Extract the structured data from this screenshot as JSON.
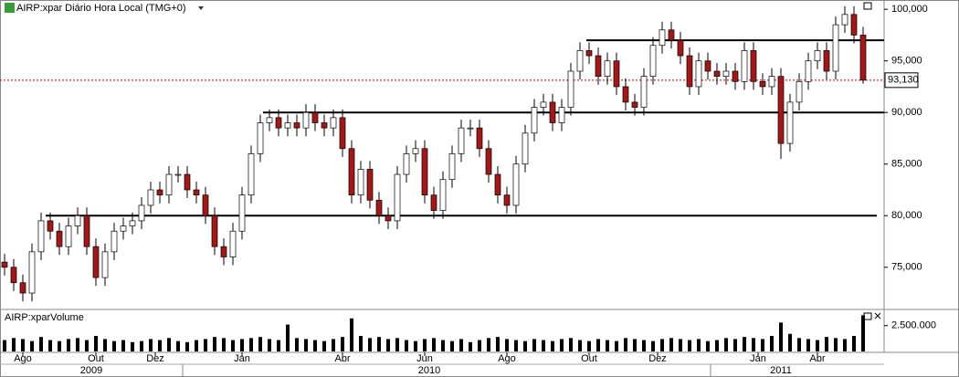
{
  "chart_data": {
    "type": "candlestick",
    "title": "AIRP:xpar Diário Hora Local (TMG+0)",
    "volume_title": "AIRP:xparVolume",
    "open": [
      75500,
      75000,
      73500,
      72500,
      76500,
      79500,
      78500,
      77000,
      79000,
      80000,
      77000,
      74000,
      76500,
      78500,
      79000,
      79500,
      81000,
      82500,
      82000,
      84000,
      84000,
      82500,
      82000,
      80000,
      77000,
      76000,
      78500,
      82000,
      86000,
      89000,
      89500,
      88500,
      89000,
      88500,
      90000,
      89000,
      88500,
      89500,
      86500,
      82000,
      84500,
      81500,
      80000,
      79500,
      84000,
      86000,
      86500,
      82000,
      80500,
      83500,
      86000,
      88500,
      88500,
      86500,
      84000,
      82000,
      81000,
      85000,
      88000,
      90500,
      91000,
      89000,
      90500,
      94000,
      96000,
      95500,
      93500,
      95000,
      92500,
      91000,
      90500,
      93500,
      96500,
      98000,
      97000,
      95500,
      92500,
      95000,
      94000,
      93500,
      94000,
      93000,
      96000,
      93000,
      92500,
      93500,
      87000,
      91000,
      93000,
      95000,
      96000,
      94000,
      98500,
      99500,
      97500
    ],
    "high": [
      76300,
      75800,
      74300,
      77300,
      80300,
      80300,
      79300,
      79800,
      80800,
      80800,
      77800,
      77300,
      79300,
      79800,
      80300,
      81800,
      83300,
      83300,
      84800,
      84800,
      84800,
      83300,
      82800,
      80800,
      77800,
      79300,
      82800,
      86800,
      89800,
      90300,
      90300,
      89800,
      89800,
      90800,
      90800,
      89800,
      90300,
      90300,
      87300,
      85300,
      85300,
      82300,
      80800,
      84800,
      86800,
      87300,
      87300,
      82800,
      84300,
      86800,
      89300,
      89300,
      89300,
      87300,
      84800,
      82800,
      85800,
      88800,
      91300,
      91800,
      91800,
      91300,
      94800,
      96800,
      96800,
      96300,
      95800,
      95800,
      93300,
      91800,
      94300,
      97300,
      98800,
      98800,
      97800,
      96300,
      95800,
      95800,
      94800,
      94800,
      94800,
      96800,
      96800,
      93800,
      94300,
      94300,
      91800,
      93800,
      95800,
      96800,
      96800,
      99300,
      100300,
      100300,
      98300
    ],
    "low": [
      74200,
      72700,
      71700,
      71700,
      75700,
      77700,
      76200,
      76200,
      78200,
      76200,
      73200,
      73200,
      75700,
      77700,
      78200,
      78700,
      80200,
      81200,
      81200,
      83200,
      81700,
      81200,
      79200,
      76200,
      75200,
      75200,
      77700,
      81200,
      85200,
      88200,
      87700,
      87700,
      87700,
      87700,
      88200,
      87700,
      87700,
      85700,
      81200,
      81200,
      80700,
      79200,
      78700,
      78700,
      83200,
      85200,
      81200,
      79700,
      79700,
      82700,
      85200,
      87700,
      85700,
      83200,
      81200,
      80200,
      80200,
      84200,
      87200,
      89700,
      88200,
      88200,
      89700,
      93200,
      94700,
      92700,
      92700,
      91700,
      90200,
      89700,
      89700,
      92700,
      95700,
      96200,
      94700,
      91700,
      91700,
      93200,
      92700,
      92700,
      92200,
      92200,
      92200,
      91700,
      91700,
      85500,
      86200,
      90200,
      92200,
      94200,
      93200,
      93200,
      97700,
      96700,
      92800
    ],
    "close": [
      75000,
      73500,
      72500,
      76500,
      79500,
      78500,
      77000,
      79000,
      80000,
      77000,
      74000,
      76500,
      78500,
      79000,
      79500,
      81000,
      82500,
      82000,
      84000,
      84000,
      82500,
      82000,
      80000,
      77000,
      76000,
      78500,
      82000,
      86000,
      89000,
      89500,
      88500,
      89000,
      88500,
      90000,
      89000,
      88500,
      89500,
      86500,
      82000,
      84500,
      81500,
      80000,
      79500,
      84000,
      86000,
      86500,
      82000,
      80500,
      83500,
      86000,
      88500,
      88500,
      86500,
      84000,
      82000,
      81000,
      85000,
      88000,
      90500,
      91000,
      89000,
      90500,
      94000,
      96000,
      95500,
      93500,
      95000,
      92500,
      91000,
      90500,
      93500,
      96500,
      98000,
      97000,
      95500,
      92500,
      95000,
      94000,
      93500,
      94000,
      93000,
      96000,
      93000,
      92500,
      93500,
      87000,
      91000,
      93000,
      95000,
      96000,
      94000,
      98500,
      99500,
      97500,
      93130
    ],
    "volume": [
      1100000,
      1300000,
      1200000,
      1000000,
      1400000,
      1100000,
      1000000,
      1200000,
      1300000,
      1100000,
      1500000,
      1200000,
      1000000,
      1100000,
      900000,
      1000000,
      1200000,
      1100000,
      1300000,
      1000000,
      900000,
      1100000,
      1200000,
      1400000,
      1300000,
      1100000,
      1200000,
      1300000,
      1400000,
      1200000,
      1100000,
      2600000,
      1300000,
      1200000,
      1100000,
      1000000,
      1200000,
      1400000,
      3200000,
      1500000,
      1300000,
      1400000,
      1200000,
      1300000,
      1100000,
      1000000,
      1200000,
      1300000,
      1100000,
      1000000,
      1200000,
      900000,
      1100000,
      1300000,
      1400000,
      1200000,
      1100000,
      1000000,
      1200000,
      1100000,
      1000000,
      1200000,
      1300000,
      1100000,
      1000000,
      1200000,
      1100000,
      1000000,
      1300000,
      1200000,
      1100000,
      1000000,
      1200000,
      1300000,
      1200000,
      1100000,
      1200000,
      1000000,
      1100000,
      1300000,
      1200000,
      1400000,
      1300000,
      1200000,
      1500000,
      2800000,
      1700000,
      1300000,
      1200000,
      1100000,
      1400000,
      1300000,
      1200000,
      1500000,
      3500000
    ],
    "up_color": "#ffffff",
    "down_color": "#a01818",
    "volume_color": "#000000",
    "xlim": [
      0,
      96
    ],
    "ylim": [
      71000,
      100900
    ],
    "yticks": [
      {
        "value": 75000,
        "label": "75,000"
      },
      {
        "value": 80000,
        "label": "80,000"
      },
      {
        "value": 85000,
        "label": "85,000"
      },
      {
        "value": 90000,
        "label": "90,000"
      },
      {
        "value": 95000,
        "label": "95,000"
      },
      {
        "value": 100000,
        "label": "100,000"
      }
    ],
    "volume_ylim": [
      0,
      3800000
    ],
    "volume_yticks": [
      {
        "value": 2500000,
        "label": "2.500.000"
      }
    ],
    "xticks": [
      {
        "value": 2.5,
        "label": "Ago"
      },
      {
        "value": 10.5,
        "label": "Out"
      },
      {
        "value": 17,
        "label": "Dez"
      },
      {
        "value": 26.5,
        "label": "Jan"
      },
      {
        "value": 37.5,
        "label": "Abr"
      },
      {
        "value": 46.5,
        "label": "Jun"
      },
      {
        "value": 55.5,
        "label": "Ago"
      },
      {
        "value": 64.5,
        "label": "Out"
      },
      {
        "value": 72,
        "label": "Dez"
      },
      {
        "value": 83,
        "label": "Jan"
      },
      {
        "value": 89.5,
        "label": "Abr"
      }
    ],
    "year_labels": [
      {
        "value": 10,
        "label": "2009"
      },
      {
        "value": 47,
        "label": "2010"
      },
      {
        "value": 85.5,
        "label": "2011"
      }
    ],
    "levels": [
      {
        "value": 80000,
        "from": 5,
        "to": 96
      },
      {
        "value": 90000,
        "from": 28.8,
        "to": 96.8
      },
      {
        "value": 97000,
        "from": 64.2,
        "to": 96.8
      }
    ],
    "last_price": {
      "value": 93130,
      "label": "93,130"
    }
  }
}
